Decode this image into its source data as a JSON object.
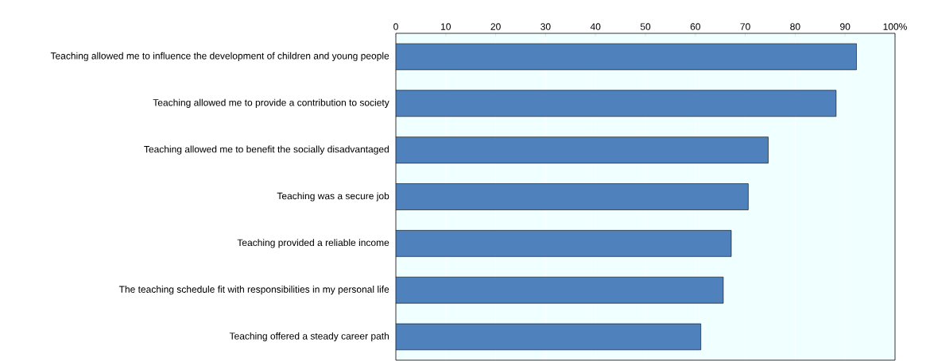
{
  "chart_data": {
    "type": "bar",
    "orientation": "horizontal",
    "categories": [
      "Teaching allowed me to influence the development of children and young people",
      "Teaching allowed me to provide a contribution to society",
      "Teaching allowed me to benefit the socially disadvantaged",
      "Teaching was a secure job",
      "Teaching provided a reliable income",
      "The teaching schedule fit with responsibilities in my personal life",
      "Teaching offered a steady career path"
    ],
    "values": [
      92.3,
      88.2,
      74.6,
      70.6,
      67.2,
      65.6,
      61.1
    ],
    "color": "#4f81bd",
    "xlim": [
      0,
      100
    ],
    "xticks": [
      0,
      10,
      20,
      30,
      40,
      50,
      60,
      70,
      80,
      90,
      {
        "value": 100,
        "label": "100%"
      }
    ],
    "grid": "x"
  }
}
